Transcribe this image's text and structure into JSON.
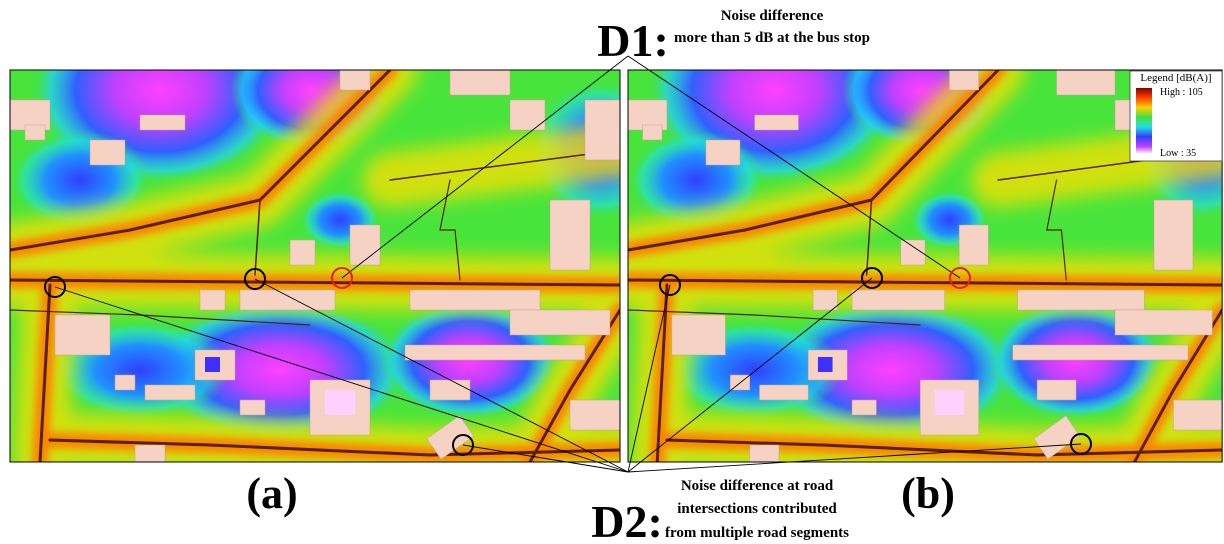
{
  "annotations": {
    "d1": {
      "tag": "D1:",
      "lines": [
        "Noise difference",
        "more than 5 dB at the bus stop"
      ]
    },
    "d2": {
      "tag": "D2:",
      "lines": [
        "Noise difference at road",
        "intersections contributed",
        "from multiple road segments"
      ]
    }
  },
  "panels": [
    {
      "label": "(a)"
    },
    {
      "label": "(b)"
    }
  ],
  "legend": {
    "title": "Legend [dB(A)]",
    "high": "High : 105",
    "low": "Low : 35"
  }
}
